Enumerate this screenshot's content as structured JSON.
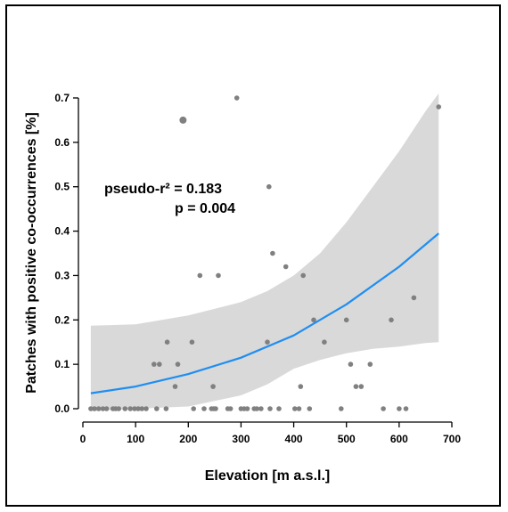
{
  "chart_data": {
    "type": "scatter",
    "xlabel": "Elevation [m a.s.l.]",
    "ylabel": "Patches with positive co-occurrences [%]",
    "xlim": [
      0,
      700
    ],
    "ylim": [
      0,
      0.7
    ],
    "x_ticks": [
      0,
      100,
      200,
      300,
      400,
      500,
      600,
      700
    ],
    "y_ticks": [
      0.0,
      0.1,
      0.2,
      0.3,
      0.4,
      0.5,
      0.6,
      0.7
    ],
    "annotations": [
      "pseudo-r² = 0.183",
      "p = 0.004"
    ],
    "grid": false,
    "legend": "none",
    "colors": {
      "points": "#808080",
      "fit_line": "#1f8ef1",
      "ci_band": "#d9d9d9"
    },
    "points": [
      {
        "x": 15,
        "y": 0
      },
      {
        "x": 22,
        "y": 0
      },
      {
        "x": 30,
        "y": 0
      },
      {
        "x": 38,
        "y": 0
      },
      {
        "x": 45,
        "y": 0
      },
      {
        "x": 57,
        "y": 0
      },
      {
        "x": 62,
        "y": 0
      },
      {
        "x": 68,
        "y": 0
      },
      {
        "x": 80,
        "y": 0
      },
      {
        "x": 90,
        "y": 0
      },
      {
        "x": 98,
        "y": 0
      },
      {
        "x": 105,
        "y": 0
      },
      {
        "x": 112,
        "y": 0
      },
      {
        "x": 120,
        "y": 0
      },
      {
        "x": 140,
        "y": 0
      },
      {
        "x": 158,
        "y": 0
      },
      {
        "x": 210,
        "y": 0
      },
      {
        "x": 230,
        "y": 0
      },
      {
        "x": 244,
        "y": 0
      },
      {
        "x": 248,
        "y": 0
      },
      {
        "x": 252,
        "y": 0
      },
      {
        "x": 275,
        "y": 0
      },
      {
        "x": 280,
        "y": 0
      },
      {
        "x": 300,
        "y": 0
      },
      {
        "x": 306,
        "y": 0
      },
      {
        "x": 312,
        "y": 0
      },
      {
        "x": 325,
        "y": 0
      },
      {
        "x": 330,
        "y": 0
      },
      {
        "x": 338,
        "y": 0
      },
      {
        "x": 355,
        "y": 0
      },
      {
        "x": 372,
        "y": 0
      },
      {
        "x": 402,
        "y": 0
      },
      {
        "x": 410,
        "y": 0
      },
      {
        "x": 430,
        "y": 0
      },
      {
        "x": 490,
        "y": 0
      },
      {
        "x": 570,
        "y": 0
      },
      {
        "x": 600,
        "y": 0
      },
      {
        "x": 613,
        "y": 0
      },
      {
        "x": 135,
        "y": 0.1
      },
      {
        "x": 145,
        "y": 0.1
      },
      {
        "x": 180,
        "y": 0.1
      },
      {
        "x": 508,
        "y": 0.1
      },
      {
        "x": 545,
        "y": 0.1
      },
      {
        "x": 175,
        "y": 0.05
      },
      {
        "x": 247,
        "y": 0.05
      },
      {
        "x": 413,
        "y": 0.05
      },
      {
        "x": 518,
        "y": 0.05
      },
      {
        "x": 528,
        "y": 0.05
      },
      {
        "x": 160,
        "y": 0.15
      },
      {
        "x": 207,
        "y": 0.15
      },
      {
        "x": 350,
        "y": 0.15
      },
      {
        "x": 458,
        "y": 0.15
      },
      {
        "x": 438,
        "y": 0.2
      },
      {
        "x": 500,
        "y": 0.2
      },
      {
        "x": 585,
        "y": 0.2
      },
      {
        "x": 628,
        "y": 0.25
      },
      {
        "x": 222,
        "y": 0.3
      },
      {
        "x": 257,
        "y": 0.3
      },
      {
        "x": 418,
        "y": 0.3
      },
      {
        "x": 385,
        "y": 0.32
      },
      {
        "x": 360,
        "y": 0.35
      },
      {
        "x": 353,
        "y": 0.5
      },
      {
        "x": 190,
        "y": 0.65
      },
      {
        "x": 292,
        "y": 0.7
      },
      {
        "x": 675,
        "y": 0.68
      }
    ],
    "fit_line": {
      "x": [
        15,
        100,
        200,
        300,
        400,
        500,
        600,
        675
      ],
      "y": [
        0.035,
        0.05,
        0.078,
        0.115,
        0.165,
        0.235,
        0.32,
        0.395
      ]
    },
    "ci_band": {
      "x": [
        15,
        100,
        200,
        300,
        350,
        400,
        450,
        500,
        550,
        600,
        650,
        675
      ],
      "lower": [
        -0.01,
        0.0,
        0.005,
        0.03,
        0.055,
        0.09,
        0.11,
        0.125,
        0.135,
        0.14,
        0.148,
        0.15
      ],
      "upper": [
        0.187,
        0.19,
        0.21,
        0.24,
        0.265,
        0.3,
        0.35,
        0.42,
        0.5,
        0.58,
        0.67,
        0.71
      ]
    }
  }
}
